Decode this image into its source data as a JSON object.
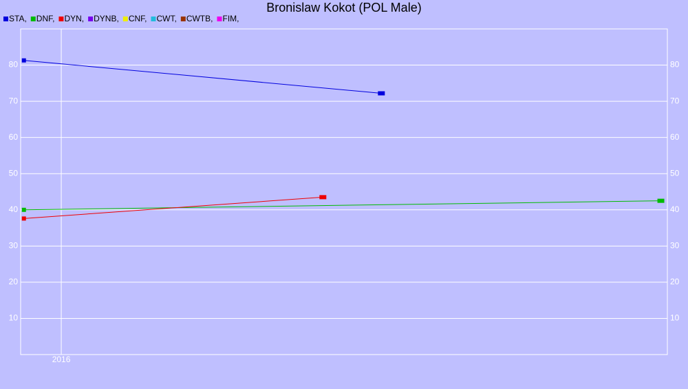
{
  "chart_data": {
    "type": "line",
    "title": "Bronislaw Kokot (POL Male)",
    "xlim": [
      2015.75,
      2019.73
    ],
    "xticks": [
      2016
    ],
    "ylim": [
      0,
      90
    ],
    "yticks": [
      10,
      20,
      30,
      40,
      50,
      60,
      70,
      80
    ],
    "grid": true,
    "series": [
      {
        "name": "STA,",
        "color": "#0000dd",
        "x": [
          2015.77,
          2017.97
        ],
        "values": [
          81.3,
          72.2
        ]
      },
      {
        "name": "DNF,",
        "color": "#00bb00",
        "x": [
          2015.77,
          2019.69
        ],
        "values": [
          40.0,
          42.5
        ]
      },
      {
        "name": "DYN,",
        "color": "#ee0000",
        "x": [
          2015.77,
          2017.61
        ],
        "values": [
          37.6,
          43.5
        ]
      },
      {
        "name": "DYNB,",
        "color": "#7700ee",
        "x": [],
        "values": []
      },
      {
        "name": "CNF,",
        "color": "#eeee00",
        "x": [],
        "values": []
      },
      {
        "name": "CWT,",
        "color": "#22bbdd",
        "x": [],
        "values": []
      },
      {
        "name": "CWTB,",
        "color": "#993300",
        "x": [],
        "values": []
      },
      {
        "name": "FIM,",
        "color": "#ee00ee",
        "x": [],
        "values": []
      }
    ]
  }
}
